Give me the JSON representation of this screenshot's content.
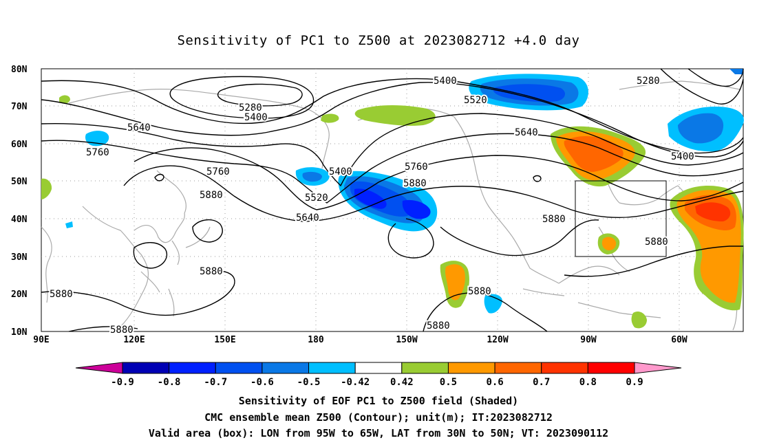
{
  "title": "Sensitivity of PC1 to Z500 at 2023082712 +4.0 day",
  "lat_labels": [
    "80N",
    "70N",
    "60N",
    "50N",
    "40N",
    "30N",
    "20N",
    "10N"
  ],
  "lon_labels": [
    "90E",
    "120E",
    "150E",
    "180",
    "150W",
    "120W",
    "90W",
    "60W"
  ],
  "contour_labels": [
    "5400",
    "5280",
    "5400",
    "5520",
    "5640",
    "5760",
    "5280",
    "5400",
    "5640",
    "5400",
    "5760",
    "5880",
    "5880",
    "5520",
    "5640",
    "5400",
    "5760",
    "5880",
    "5880",
    "5880",
    "5880",
    "5880",
    "5880",
    "5880",
    "5880"
  ],
  "colorbar": {
    "labels": [
      "-0.9",
      "-0.8",
      "-0.7",
      "-0.6",
      "-0.5",
      "-0.42",
      "0.42",
      "0.5",
      "0.6",
      "0.7",
      "0.8",
      "0.9"
    ],
    "colors": [
      "#cc0099",
      "#0000b4",
      "#0020ff",
      "#0050f0",
      "#0a78e6",
      "#00bfff",
      "#ffffff",
      "#99cc33",
      "#ff9900",
      "#ff6600",
      "#ff3300",
      "#ff0000",
      "#ff99cc"
    ]
  },
  "captions": [
    "Sensitivity of EOF PC1 to Z500 field (Shaded)",
    "CMC ensemble mean Z500 (Contour); unit(m); IT:2023082712",
    "Valid area (box): LON from 95W to 65W, LAT from 30N to 50N; VT: 2023090112"
  ]
}
